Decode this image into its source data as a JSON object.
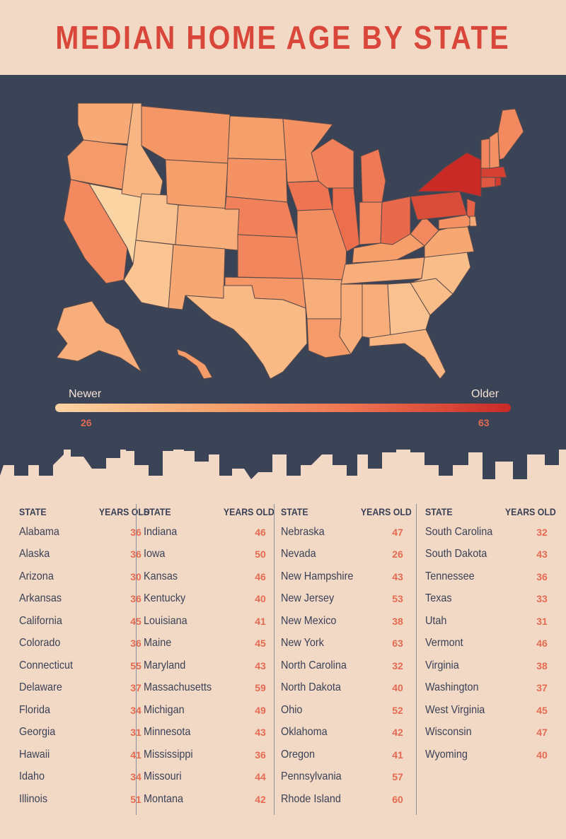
{
  "title": "MEDIAN HOME AGE BY STATE",
  "legend": {
    "low_label": "Newer",
    "high_label": "Older",
    "min": "26",
    "max": "63"
  },
  "colors": {
    "background": "#f2d9c6",
    "panel": "#3b4357",
    "accent": "#d9473a",
    "value": "#e46b52"
  },
  "table": {
    "header_state": "STATE",
    "header_years": "YEARS OLD",
    "columns": [
      [
        {
          "state": "Alabama",
          "years": "36"
        },
        {
          "state": "Alaska",
          "years": "36"
        },
        {
          "state": "Arizona",
          "years": "30"
        },
        {
          "state": "Arkansas",
          "years": "36"
        },
        {
          "state": "California",
          "years": "45"
        },
        {
          "state": "Colorado",
          "years": "36"
        },
        {
          "state": "Connecticut",
          "years": "55"
        },
        {
          "state": "Delaware",
          "years": "37"
        },
        {
          "state": "Florida",
          "years": "34"
        },
        {
          "state": "Georgia",
          "years": "31"
        },
        {
          "state": "Hawaii",
          "years": "41"
        },
        {
          "state": "Idaho",
          "years": "34"
        },
        {
          "state": "Illinois",
          "years": "51"
        }
      ],
      [
        {
          "state": "Indiana",
          "years": "46"
        },
        {
          "state": "Iowa",
          "years": "50"
        },
        {
          "state": "Kansas",
          "years": "46"
        },
        {
          "state": "Kentucky",
          "years": "40"
        },
        {
          "state": "Louisiana",
          "years": "41"
        },
        {
          "state": "Maine",
          "years": "45"
        },
        {
          "state": "Maryland",
          "years": "43"
        },
        {
          "state": "Massachusetts",
          "years": "59"
        },
        {
          "state": "Michigan",
          "years": "49"
        },
        {
          "state": "Minnesota",
          "years": "43"
        },
        {
          "state": "Mississippi",
          "years": "36"
        },
        {
          "state": "Missouri",
          "years": "44"
        },
        {
          "state": "Montana",
          "years": "42"
        }
      ],
      [
        {
          "state": "Nebraska",
          "years": "47"
        },
        {
          "state": "Nevada",
          "years": "26"
        },
        {
          "state": "New Hampshire",
          "years": "43"
        },
        {
          "state": "New Jersey",
          "years": "53"
        },
        {
          "state": "New Mexico",
          "years": "38"
        },
        {
          "state": "New York",
          "years": "63"
        },
        {
          "state": "North Carolina",
          "years": "32"
        },
        {
          "state": "North Dakota",
          "years": "40"
        },
        {
          "state": "Ohio",
          "years": "52"
        },
        {
          "state": "Oklahoma",
          "years": "42"
        },
        {
          "state": "Oregon",
          "years": "41"
        },
        {
          "state": "Pennsylvania",
          "years": "57"
        },
        {
          "state": "Rhode Island",
          "years": "60"
        }
      ],
      [
        {
          "state": "South Carolina",
          "years": "32"
        },
        {
          "state": "South Dakota",
          "years": "43"
        },
        {
          "state": "Tennessee",
          "years": "36"
        },
        {
          "state": "Texas",
          "years": "33"
        },
        {
          "state": "Utah",
          "years": "31"
        },
        {
          "state": "Vermont",
          "years": "46"
        },
        {
          "state": "Virginia",
          "years": "38"
        },
        {
          "state": "Washington",
          "years": "37"
        },
        {
          "state": "West Virginia",
          "years": "45"
        },
        {
          "state": "Wisconsin",
          "years": "47"
        },
        {
          "state": "Wyoming",
          "years": "40"
        }
      ]
    ]
  },
  "chart_data": {
    "type": "table",
    "title": "MEDIAN HOME AGE BY STATE",
    "value_label": "YEARS OLD",
    "color_scale": {
      "min": 26,
      "max": 63,
      "low_label": "Newer",
      "high_label": "Older"
    },
    "rows": [
      [
        "Alabama",
        36
      ],
      [
        "Alaska",
        36
      ],
      [
        "Arizona",
        30
      ],
      [
        "Arkansas",
        36
      ],
      [
        "California",
        45
      ],
      [
        "Colorado",
        36
      ],
      [
        "Connecticut",
        55
      ],
      [
        "Delaware",
        37
      ],
      [
        "Florida",
        34
      ],
      [
        "Georgia",
        31
      ],
      [
        "Hawaii",
        41
      ],
      [
        "Idaho",
        34
      ],
      [
        "Illinois",
        51
      ],
      [
        "Indiana",
        46
      ],
      [
        "Iowa",
        50
      ],
      [
        "Kansas",
        46
      ],
      [
        "Kentucky",
        40
      ],
      [
        "Louisiana",
        41
      ],
      [
        "Maine",
        45
      ],
      [
        "Maryland",
        43
      ],
      [
        "Massachusetts",
        59
      ],
      [
        "Michigan",
        49
      ],
      [
        "Minnesota",
        43
      ],
      [
        "Mississippi",
        36
      ],
      [
        "Missouri",
        44
      ],
      [
        "Montana",
        42
      ],
      [
        "Nebraska",
        47
      ],
      [
        "Nevada",
        26
      ],
      [
        "New Hampshire",
        43
      ],
      [
        "New Jersey",
        53
      ],
      [
        "New Mexico",
        38
      ],
      [
        "New York",
        63
      ],
      [
        "North Carolina",
        32
      ],
      [
        "North Dakota",
        40
      ],
      [
        "Ohio",
        52
      ],
      [
        "Oklahoma",
        42
      ],
      [
        "Oregon",
        41
      ],
      [
        "Pennsylvania",
        57
      ],
      [
        "Rhode Island",
        60
      ],
      [
        "South Carolina",
        32
      ],
      [
        "South Dakota",
        43
      ],
      [
        "Tennessee",
        36
      ],
      [
        "Texas",
        33
      ],
      [
        "Utah",
        31
      ],
      [
        "Vermont",
        46
      ],
      [
        "Virginia",
        38
      ],
      [
        "Washington",
        37
      ],
      [
        "West Virginia",
        45
      ],
      [
        "Wisconsin",
        47
      ],
      [
        "Wyoming",
        40
      ]
    ]
  }
}
